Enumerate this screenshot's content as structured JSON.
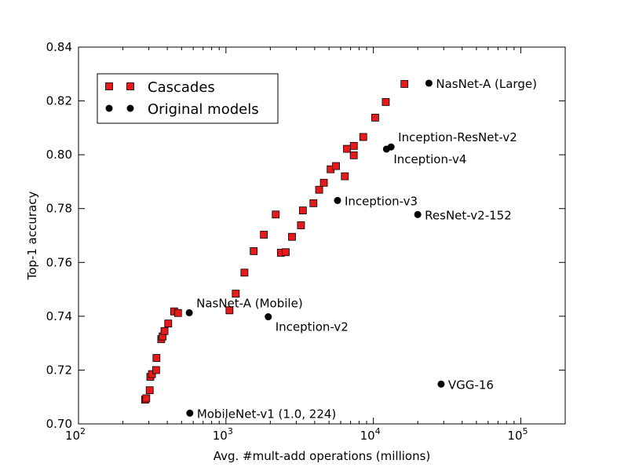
{
  "chart_data": {
    "type": "scatter",
    "xscale": "log",
    "xlabel": "Avg. #mult-add operations (millions)",
    "ylabel": "Top-1 accuracy",
    "xlim": [
      100,
      200000
    ],
    "ylim": [
      0.7,
      0.84
    ],
    "x_ticks": [
      {
        "value": 100,
        "base": "10",
        "exp": "2"
      },
      {
        "value": 1000,
        "base": "10",
        "exp": "3"
      },
      {
        "value": 10000,
        "base": "10",
        "exp": "4"
      },
      {
        "value": 100000,
        "base": "10",
        "exp": "5"
      }
    ],
    "y_ticks": [
      {
        "value": 0.7,
        "label": "0.70"
      },
      {
        "value": 0.72,
        "label": "0.72"
      },
      {
        "value": 0.74,
        "label": "0.74"
      },
      {
        "value": 0.76,
        "label": "0.76"
      },
      {
        "value": 0.78,
        "label": "0.78"
      },
      {
        "value": 0.8,
        "label": "0.80"
      },
      {
        "value": 0.82,
        "label": "0.82"
      },
      {
        "value": 0.84,
        "label": "0.84"
      }
    ],
    "legend": {
      "position": "upper-left",
      "entries": [
        {
          "label": "Cascades",
          "marker": "square",
          "color": "#e41a1c"
        },
        {
          "label": "Original models",
          "marker": "circle",
          "color": "#000000"
        }
      ]
    },
    "series": [
      {
        "name": "Cascades",
        "marker": "square",
        "color": "#e41a1c",
        "points": [
          {
            "x": 283,
            "y": 0.709
          },
          {
            "x": 288,
            "y": 0.7095
          },
          {
            "x": 304,
            "y": 0.7125
          },
          {
            "x": 307,
            "y": 0.7175
          },
          {
            "x": 315,
            "y": 0.7185
          },
          {
            "x": 336,
            "y": 0.72
          },
          {
            "x": 338,
            "y": 0.7245
          },
          {
            "x": 364,
            "y": 0.7315
          },
          {
            "x": 372,
            "y": 0.7325
          },
          {
            "x": 383,
            "y": 0.7345
          },
          {
            "x": 406,
            "y": 0.7373
          },
          {
            "x": 445,
            "y": 0.7418
          },
          {
            "x": 473,
            "y": 0.7412
          },
          {
            "x": 1057,
            "y": 0.7422
          },
          {
            "x": 1166,
            "y": 0.7484
          },
          {
            "x": 1335,
            "y": 0.7562
          },
          {
            "x": 1543,
            "y": 0.7642
          },
          {
            "x": 1809,
            "y": 0.7703
          },
          {
            "x": 2177,
            "y": 0.7778
          },
          {
            "x": 2360,
            "y": 0.7636
          },
          {
            "x": 2544,
            "y": 0.7638
          },
          {
            "x": 2806,
            "y": 0.7695
          },
          {
            "x": 3229,
            "y": 0.7738
          },
          {
            "x": 3326,
            "y": 0.7793
          },
          {
            "x": 3921,
            "y": 0.782
          },
          {
            "x": 4287,
            "y": 0.787
          },
          {
            "x": 4614,
            "y": 0.7896
          },
          {
            "x": 5130,
            "y": 0.7946
          },
          {
            "x": 5579,
            "y": 0.7958
          },
          {
            "x": 6407,
            "y": 0.792
          },
          {
            "x": 6623,
            "y": 0.8022
          },
          {
            "x": 7359,
            "y": 0.7998
          },
          {
            "x": 7370,
            "y": 0.8033
          },
          {
            "x": 8535,
            "y": 0.8066
          },
          {
            "x": 10290,
            "y": 0.8138
          },
          {
            "x": 12140,
            "y": 0.8196
          },
          {
            "x": 16238,
            "y": 0.8263
          }
        ]
      },
      {
        "name": "Original models",
        "marker": "circle",
        "color": "#000000",
        "points": [
          {
            "x": 569,
            "y": 0.704,
            "label": "MobileNet-v1 (1.0, 224)",
            "anchor": "right"
          },
          {
            "x": 564,
            "y": 0.7413,
            "label": "NasNet-A (Mobile)",
            "anchor": "upper-right"
          },
          {
            "x": 1937,
            "y": 0.7398,
            "label": "Inception-v2",
            "anchor": "lower-right"
          },
          {
            "x": 5713,
            "y": 0.783,
            "label": "Inception-v3",
            "anchor": "right"
          },
          {
            "x": 12270,
            "y": 0.8021,
            "label": "Inception-v4",
            "anchor": "lower-right"
          },
          {
            "x": 13180,
            "y": 0.8029,
            "label": "Inception-ResNet-v2",
            "anchor": "upper-right"
          },
          {
            "x": 20000,
            "y": 0.7778,
            "label": "ResNet-v2-152",
            "anchor": "right"
          },
          {
            "x": 23800,
            "y": 0.8266,
            "label": "NasNet-A (Large)",
            "anchor": "right"
          },
          {
            "x": 28800,
            "y": 0.7148,
            "label": "VGG-16",
            "anchor": "right"
          }
        ]
      }
    ]
  }
}
